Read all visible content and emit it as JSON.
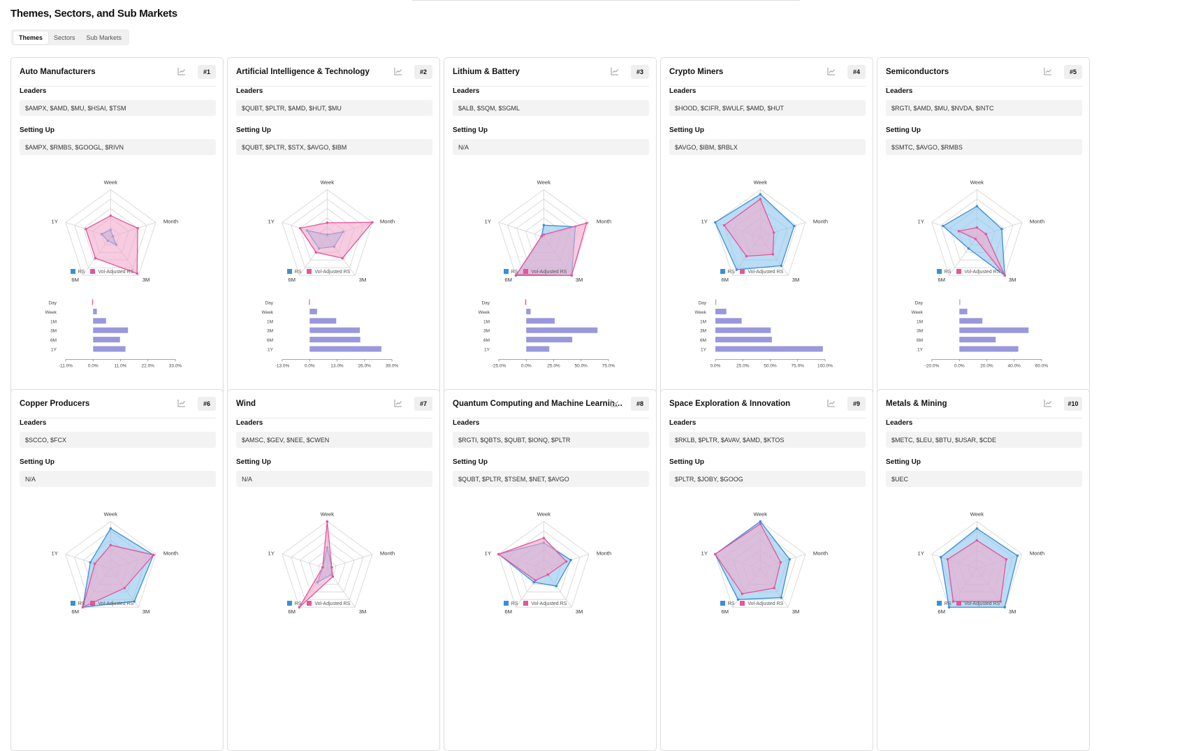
{
  "page": {
    "title": "Themes, Sectors, and Sub Markets"
  },
  "tabs": [
    {
      "label": "Themes"
    },
    {
      "label": "Sectors"
    },
    {
      "label": "Sub Markets"
    }
  ],
  "labels": {
    "leaders": "Leaders",
    "setting_up": "Setting Up",
    "legend_rs": "RS",
    "legend_vol": "Vol-Adjusted RS"
  },
  "radar_axes": [
    "Week",
    "Month",
    "3M",
    "6M",
    "1Y"
  ],
  "bar_periods": [
    "Day",
    "Week",
    "1M",
    "3M",
    "6M",
    "1Y"
  ],
  "colors": {
    "rs": "#3a8fd6",
    "rs_fill": "#8cc4ec",
    "vol": "#e4559a",
    "vol_fill": "#f2a8cc",
    "bar": "#9a98dc",
    "bar_neg": "#e6609f",
    "grid": "#d6d6d6"
  },
  "cards": [
    {
      "rank": "#1",
      "title": "Auto Manufacturers",
      "leaders": "$AMPX, $AMD, $MU, $HSAI, $TSM",
      "setting_up": "$AMPX, $RMBS, $GOOGL, $RIVN",
      "rs": [
        0.15,
        0.05,
        0.2,
        0.1,
        0.2
      ],
      "vol": [
        0.45,
        0.6,
        0.95,
        0.55,
        0.55
      ],
      "bars": [
        -0.4,
        1.5,
        5.2,
        14.0,
        10.8,
        13.0
      ],
      "axis": {
        "min": -11,
        "max": 33,
        "step": 11
      },
      "ticks": [
        "-11.0%",
        "0.0%",
        "11.0%",
        "22.0%",
        "33.0%"
      ]
    },
    {
      "rank": "#2",
      "title": "Artificial Intelligence & Technology",
      "leaders": "$QUBT, $PLTR, $AMD, $HUT, $MU",
      "setting_up": "$QUBT, $PLTR, $STX, $AVGO, $IBM",
      "rs": [
        0.05,
        0.35,
        0.25,
        0.3,
        0.45
      ],
      "vol": [
        0.3,
        1.0,
        0.55,
        0.4,
        0.6
      ],
      "bars": [
        -0.3,
        3.5,
        12.6,
        23.8,
        24.0,
        34.0
      ],
      "axis": {
        "min": -13,
        "max": 39,
        "step": 13
      },
      "ticks": [
        "-13.0%",
        "0.0%",
        "13.0%",
        "26.0%",
        "39.0%"
      ]
    },
    {
      "rank": "#3",
      "title": "Lithium & Battery",
      "leaders": "$ALB, $SQM, $SGML",
      "setting_up": "N/A",
      "rs": [
        0.25,
        0.7,
        1.0,
        1.0,
        0.05
      ],
      "vol": [
        0.05,
        0.95,
        1.0,
        0.98,
        0.05
      ],
      "bars": [
        -1.0,
        4.0,
        26.0,
        65.0,
        42.0,
        21.0
      ],
      "axis": {
        "min": -25,
        "max": 75,
        "step": 25
      },
      "ticks": [
        "-25.0%",
        "0.0%",
        "25.0%",
        "50.0%",
        "75.0%"
      ]
    },
    {
      "rank": "#4",
      "title": "Crypto Miners",
      "leaders": "$HOOD, $CIFR, $WULF, $AMD, $HUT",
      "setting_up": "$AVGO, $IBM, $RBLX",
      "rs": [
        0.9,
        0.75,
        0.75,
        0.85,
        1.0
      ],
      "vol": [
        0.8,
        0.3,
        0.45,
        0.5,
        0.8
      ],
      "bars": [
        0.0,
        10.0,
        24.0,
        50.5,
        51.5,
        98.0
      ],
      "axis": {
        "min": 0,
        "max": 100,
        "step": 25
      },
      "ticks": [
        "0.0%",
        "25.0%",
        "50.0%",
        "75.0%",
        "100.0%"
      ]
    },
    {
      "rank": "#5",
      "title": "Semiconductors",
      "leaders": "$RGTI, $AMD, $MU, $NVDA, $INTC",
      "setting_up": "$SMTC, $AVGO, $RMBS",
      "rs": [
        0.65,
        0.55,
        1.0,
        0.3,
        0.75
      ],
      "vol": [
        0.2,
        0.2,
        1.0,
        0.05,
        0.4
      ],
      "bars": [
        0.0,
        5.8,
        16.8,
        50.5,
        26.5,
        43.0
      ],
      "axis": {
        "min": -20,
        "max": 60,
        "step": 20
      },
      "ticks": [
        "-20.0%",
        "0.0%",
        "20.0%",
        "40.0%",
        "60.0%"
      ]
    },
    {
      "rank": "#6",
      "title": "Copper Producers",
      "leaders": "$SCCO, $FCX",
      "setting_up": "N/A",
      "rs": [
        0.85,
        0.95,
        0.85,
        1.0,
        0.45
      ],
      "vol": [
        0.5,
        0.95,
        0.5,
        1.0,
        0.35
      ]
    },
    {
      "rank": "#7",
      "title": "Wind",
      "leaders": "$AMSC, $GEV, $NEE, $CWEN",
      "setting_up": "N/A",
      "rs": [
        0.45,
        0.1,
        0.15,
        0.35,
        0.1
      ],
      "vol": [
        1.0,
        0.1,
        0.2,
        1.0,
        0.1
      ]
    },
    {
      "rank": "#8",
      "title": "Quantum Computing and Machine Learning Computing",
      "title_display": "Quantum Computing and Machine Learning ...",
      "leaders": "$RGTI, $QBTS, $QUBT, $IONQ, $PLTR",
      "setting_up": "$QUBT, $PLTR, $TSEM, $NET, $AVGO",
      "rs": [
        0.55,
        0.6,
        0.45,
        0.35,
        1.0
      ],
      "vol": [
        0.65,
        0.5,
        0.15,
        0.3,
        1.0
      ]
    },
    {
      "rank": "#9",
      "title": "Space Exploration & Innovation",
      "leaders": "$RKLB, $PLTR, $AVAV, $AMD, $KTOS",
      "setting_up": "$PLTR, $JOBY, $GOOG",
      "rs": [
        1.0,
        0.65,
        0.75,
        0.8,
        1.0
      ],
      "vol": [
        0.95,
        0.45,
        0.5,
        0.65,
        1.0
      ]
    },
    {
      "rank": "#10",
      "title": "Metals & Mining",
      "leaders": "$METC, $LEU, $BTU, $USAR, $CDE",
      "setting_up": "$UEC",
      "rs": [
        0.85,
        0.9,
        1.0,
        1.0,
        0.8
      ],
      "vol": [
        0.6,
        0.65,
        0.85,
        0.85,
        0.65
      ]
    }
  ]
}
